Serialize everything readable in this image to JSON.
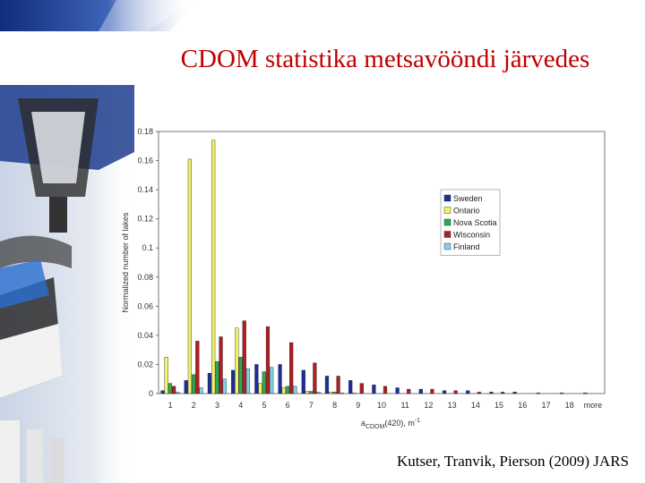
{
  "slide": {
    "title": "CDOM statistika metsavööndi järvedes",
    "citation": "Kutser, Tranvik, Pierson (2009) JARS"
  },
  "colors": {
    "title": "#c00000",
    "header_blue": "#1f3f8f"
  },
  "chart_data": {
    "type": "bar",
    "ylabel": "Normalized number of lakes",
    "xlabel_main": "a",
    "xlabel_sub": "CDOM",
    "xlabel_tail": "(420), m",
    "xlabel_sup": "-1",
    "ylim": [
      0,
      0.18
    ],
    "yticks": [
      "0",
      "0.02",
      "0.04",
      "0.06",
      "0.08",
      "0.1",
      "0.12",
      "0.14",
      "0.16",
      "0.18"
    ],
    "categories": [
      "1",
      "2",
      "3",
      "4",
      "5",
      "6",
      "7",
      "8",
      "9",
      "10",
      "11",
      "12",
      "13",
      "14",
      "15",
      "16",
      "17",
      "18",
      "more"
    ],
    "grid": false,
    "legend_position": "right",
    "series": [
      {
        "name": "Sweden",
        "color": "#1a2f9c",
        "values": [
          0.002,
          0.009,
          0.014,
          0.016,
          0.02,
          0.02,
          0.016,
          0.012,
          0.009,
          0.006,
          0.004,
          0.003,
          0.002,
          0.002,
          0.001,
          0.001,
          0.0005,
          0.0005,
          0.0005
        ]
      },
      {
        "name": "Ontario",
        "color": "#f2f26a",
        "values": [
          0.025,
          0.161,
          0.174,
          0.045,
          0.007,
          0.004,
          0.0015,
          0.001,
          0.0005,
          0,
          0,
          0,
          0,
          0,
          0,
          0,
          0,
          0,
          0
        ]
      },
      {
        "name": "Nova Scotia",
        "color": "#2fa84f",
        "values": [
          0.007,
          0.013,
          0.022,
          0.025,
          0.015,
          0.005,
          0.0015,
          0.001,
          0,
          0,
          0,
          0,
          0,
          0,
          0,
          0,
          0,
          0,
          0
        ]
      },
      {
        "name": "Wisconsin",
        "color": "#b01e23",
        "values": [
          0.005,
          0.036,
          0.039,
          0.05,
          0.046,
          0.035,
          0.021,
          0.012,
          0.007,
          0.005,
          0.003,
          0.003,
          0.002,
          0.001,
          0.001,
          0,
          0,
          0,
          0
        ]
      },
      {
        "name": "Finland",
        "color": "#7fd3e6",
        "values": [
          0.001,
          0.004,
          0.01,
          0.017,
          0.018,
          0.005,
          0.001,
          0.0005,
          0,
          0,
          0,
          0,
          0,
          0,
          0,
          0,
          0,
          0,
          0
        ]
      }
    ]
  }
}
